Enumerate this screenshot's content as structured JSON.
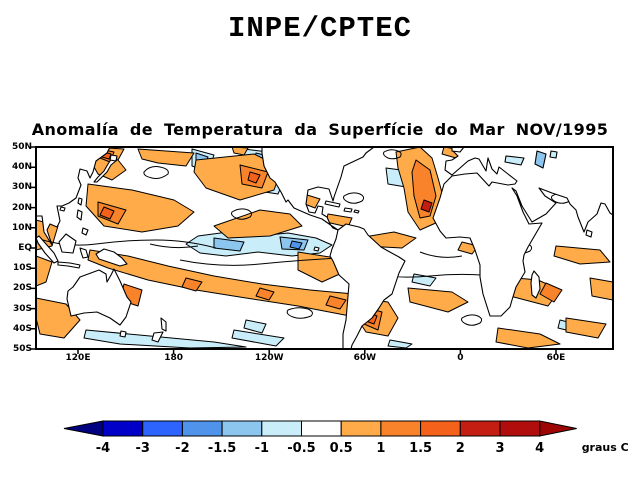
{
  "header": {
    "title": "INPE/CPTEC"
  },
  "map": {
    "title": "Anomalía de Temperatura da Superfície do Mar NOV/1995",
    "lat_labels": [
      "50N",
      "40N",
      "30N",
      "20N",
      "10N",
      "EQ",
      "10S",
      "20S",
      "30S",
      "40S",
      "50S"
    ],
    "lon_labels": [
      "120E",
      "180",
      "120W",
      "60W",
      "0",
      "60E"
    ]
  },
  "colorbar": {
    "boundary_labels": [
      "-4",
      "-3",
      "-2",
      "-1.5",
      "-1",
      "-0.5",
      "0.5",
      "1",
      "1.5",
      "2",
      "3",
      "4"
    ],
    "segment_colors": [
      "#0000C8",
      "#2E64FE",
      "#4F94EA",
      "#8CC6EE",
      "#C9EEFA",
      "#FFFFFF",
      "#FFAB49",
      "#F8832A",
      "#F4611B",
      "#C41E13",
      "#B20D0D"
    ],
    "left_arrow_color": "#000080",
    "right_arrow_color": "#9E0505",
    "unit": "graus C"
  }
}
